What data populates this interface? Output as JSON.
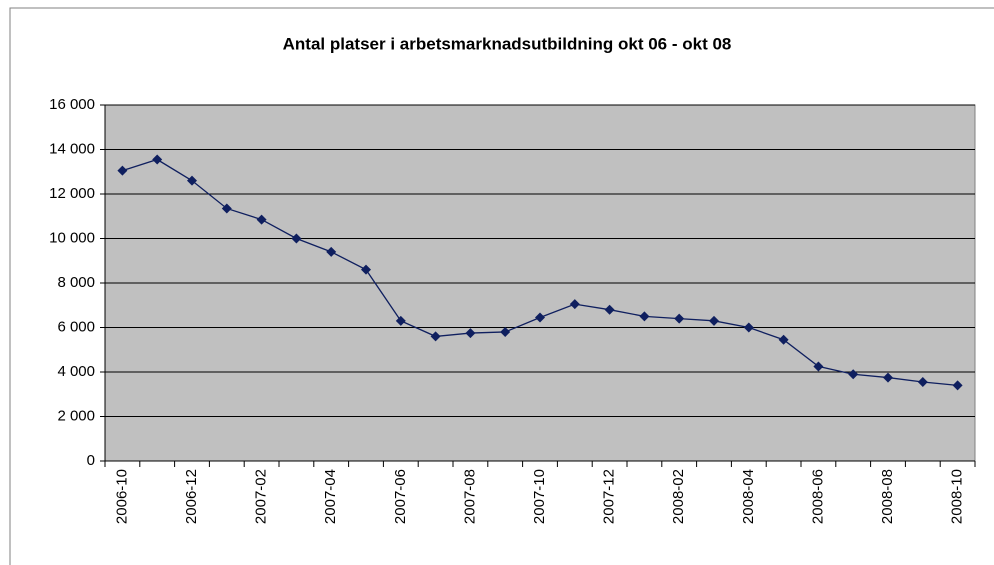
{
  "chart_data": {
    "type": "line",
    "title": "Antal platser i arbetsmarknadsutbildning okt 06 - okt 08",
    "categories": [
      "2006-10",
      null,
      "2006-12",
      null,
      "2007-02",
      null,
      "2007-04",
      null,
      "2007-06",
      null,
      "2007-08",
      null,
      "2007-10",
      null,
      "2007-12",
      null,
      "2008-02",
      null,
      "2008-04",
      null,
      "2008-06",
      null,
      "2008-08",
      null,
      "2008-10"
    ],
    "values": [
      13050,
      13550,
      12600,
      11350,
      10850,
      10000,
      9400,
      8600,
      6300,
      5600,
      5750,
      5800,
      6450,
      7050,
      6800,
      6500,
      6400,
      6300,
      6000,
      5450,
      4250,
      3900,
      3750,
      3550,
      3400
    ],
    "color": "#0f1f5f",
    "ylim": [
      0,
      16000
    ],
    "yticks": [
      0,
      {
        "value": 2000,
        "label": "2 000"
      },
      {
        "value": 4000,
        "label": "4 000"
      },
      {
        "value": 6000,
        "label": "6 000"
      },
      {
        "value": 8000,
        "label": "8 000"
      },
      {
        "value": 10000,
        "label": "10 000"
      },
      {
        "value": 12000,
        "label": "12 000"
      },
      {
        "value": 14000,
        "label": "14 000"
      },
      {
        "value": 16000,
        "label": "16 000"
      }
    ],
    "grid": true,
    "plot_background": "#c0c0c0"
  }
}
